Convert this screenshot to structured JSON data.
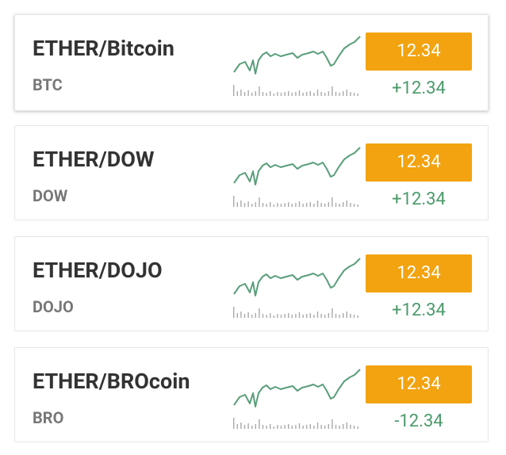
{
  "cards": [
    {
      "title": "ETHER/Bitcoin",
      "ticker": "BTC",
      "price": "12.34",
      "change": "+12.34"
    },
    {
      "title": "ETHER/DOW",
      "ticker": "DOW",
      "price": "12.34",
      "change": "+12.34"
    },
    {
      "title": "ETHER/DOJO",
      "ticker": "DOJO",
      "price": "12.34",
      "change": "+12.34"
    },
    {
      "title": "ETHER/BROcoin",
      "ticker": "BRO",
      "price": "12.34",
      "change": "-12.34"
    }
  ]
}
